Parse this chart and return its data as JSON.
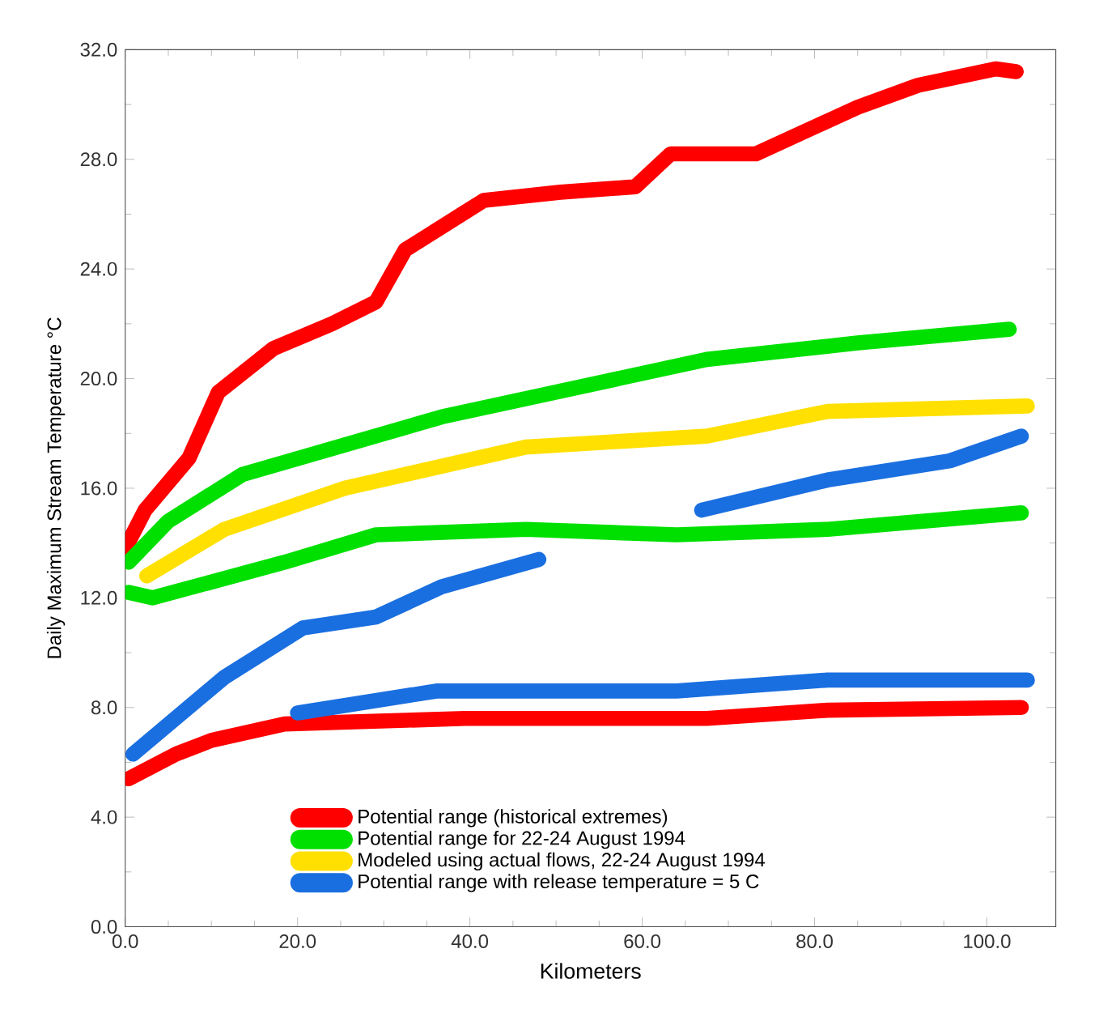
{
  "chart_data": {
    "type": "line",
    "xlabel": "Kilometers",
    "ylabel": "Daily Maximum Stream Temperature °C",
    "xlim": [
      0,
      108
    ],
    "ylim": [
      0,
      32
    ],
    "xticks": [
      {
        "value": 0,
        "label": "0.0"
      },
      {
        "value": 20,
        "label": "20.0"
      },
      {
        "value": 40,
        "label": "40.0"
      },
      {
        "value": 60,
        "label": "60.0"
      },
      {
        "value": 80,
        "label": "80.0"
      },
      {
        "value": 100,
        "label": "100.0"
      }
    ],
    "yticks": [
      {
        "value": 0,
        "label": "0.0"
      },
      {
        "value": 4,
        "label": "4.0"
      },
      {
        "value": 8,
        "label": "8.0"
      },
      {
        "value": 12,
        "label": "12.0"
      },
      {
        "value": 16,
        "label": "16.0"
      },
      {
        "value": 20,
        "label": "20.0"
      },
      {
        "value": 24,
        "label": "24.0"
      },
      {
        "value": 28,
        "label": "28.0"
      },
      {
        "value": 32,
        "label": "32.0"
      }
    ],
    "legend": "bottom",
    "marker": "none",
    "line_style": "solid",
    "series": [
      {
        "name": "Potential range (historical extremes)",
        "color": "#ff0000",
        "x": [
          0,
          2.3,
          7.4,
          10.8,
          17.2,
          24,
          29.1,
          32.5,
          41.6,
          50.5,
          59.2,
          63.3,
          73.2,
          85,
          92,
          101,
          103.4
        ],
        "values": [
          13.8,
          15.2,
          17.1,
          19.5,
          21.1,
          22,
          22.8,
          24.7,
          26.5,
          26.8,
          27,
          28.2,
          28.2,
          29.9,
          30.7,
          31.3,
          31.2
        ]
      },
      {
        "color": "#ff0000",
        "x": [
          0.4,
          5.9,
          10,
          18.5,
          39.5,
          67.5,
          81.5,
          104
        ],
        "values": [
          5.4,
          6.3,
          6.8,
          7.4,
          7.6,
          7.6,
          7.9,
          8
        ]
      },
      {
        "name": "Potential range for 22-24 August 1994",
        "color": "#00e000",
        "x": [
          0.4,
          5,
          13.6,
          36.7,
          67.5,
          85,
          102.6
        ],
        "values": [
          13.3,
          14.8,
          16.5,
          18.6,
          20.7,
          21.3,
          21.8
        ]
      },
      {
        "color": "#00e000",
        "x": [
          0.4,
          3.2,
          18.5,
          29.1,
          46.5,
          64,
          81.5,
          104
        ],
        "values": [
          12.2,
          12,
          13.3,
          14.3,
          14.5,
          14.3,
          14.5,
          15.1
        ]
      },
      {
        "name": "Modeled using actual flows, 22-24 August 1994",
        "color": "#ffe000",
        "x": [
          2.5,
          11.5,
          25.5,
          46.5,
          67.5,
          81.5,
          104.7
        ],
        "values": [
          12.8,
          14.5,
          16,
          17.5,
          17.9,
          18.8,
          19
        ]
      },
      {
        "name": "Potential range with release temperature = 5 C",
        "color": "#1a6fe0",
        "x": [
          0.9,
          11.5,
          20.6,
          29.1,
          36.7,
          48
        ],
        "values": [
          6.3,
          9.1,
          10.9,
          11.3,
          12.4,
          13.4
        ]
      },
      {
        "color": "#1a6fe0",
        "x": [
          66.9,
          81.5,
          95.7,
          104
        ],
        "values": [
          15.2,
          16.3,
          17,
          17.9
        ]
      },
      {
        "color": "#1a6fe0",
        "x": [
          20,
          36.1,
          64,
          81.5,
          104.7
        ],
        "values": [
          7.8,
          8.6,
          8.6,
          9,
          9
        ]
      }
    ]
  }
}
